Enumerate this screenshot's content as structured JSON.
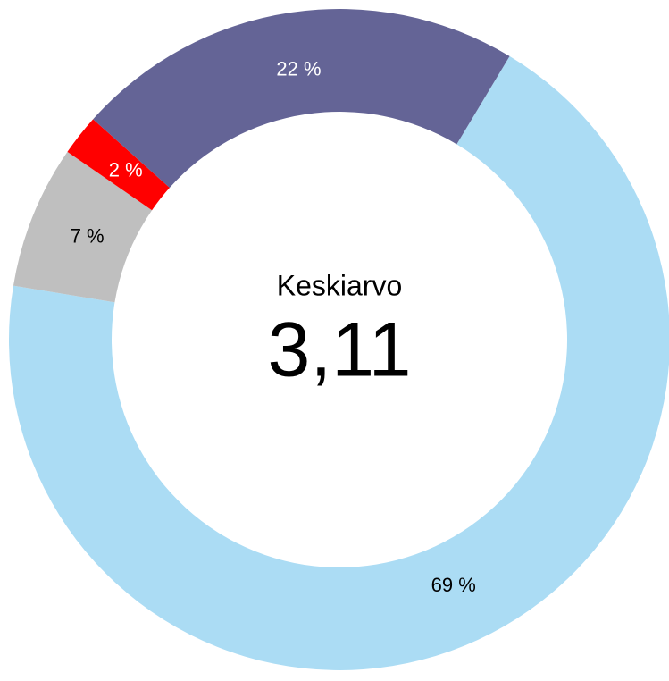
{
  "chart_data": {
    "type": "donut",
    "values": [
      69,
      7,
      2,
      22
    ],
    "value_labels": [
      "69 %",
      "7 %",
      "2 %",
      "22 %"
    ],
    "colors": [
      "#abdcf4",
      "#bfbfbf",
      "#ff0000",
      "#646496"
    ],
    "center_title": "Keskiarvo",
    "center_value": "3,11"
  }
}
